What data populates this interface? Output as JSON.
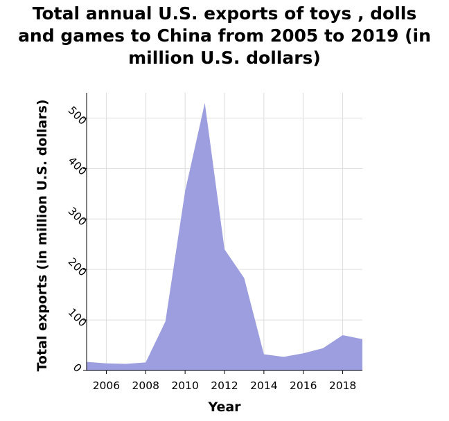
{
  "chart_data": {
    "type": "area",
    "title_lines": [
      "Total annual U.S. exports of toys , dolls",
      "and games to China from 2005 to 2019 (in",
      "million U.S. dollars)"
    ],
    "xlabel": "Year",
    "ylabel": "Total exports (in million U.S. dollars)",
    "x": [
      2005,
      2006,
      2007,
      2008,
      2009,
      2010,
      2011,
      2012,
      2013,
      2014,
      2015,
      2016,
      2017,
      2018,
      2019
    ],
    "series": [
      {
        "values": [
          17,
          14,
          13,
          16,
          97,
          355,
          530,
          240,
          183,
          32,
          27,
          34,
          44,
          70,
          62
        ]
      }
    ],
    "xlim": [
      2005,
      2019
    ],
    "ylim": [
      0,
      550
    ],
    "x_ticks": [
      2006,
      2008,
      2010,
      2012,
      2014,
      2016,
      2018
    ],
    "y_ticks": [
      0,
      100,
      200,
      300,
      400,
      500
    ],
    "fill_color": "#9c9ee0",
    "grid": true,
    "grid_color": "#dddddd"
  }
}
